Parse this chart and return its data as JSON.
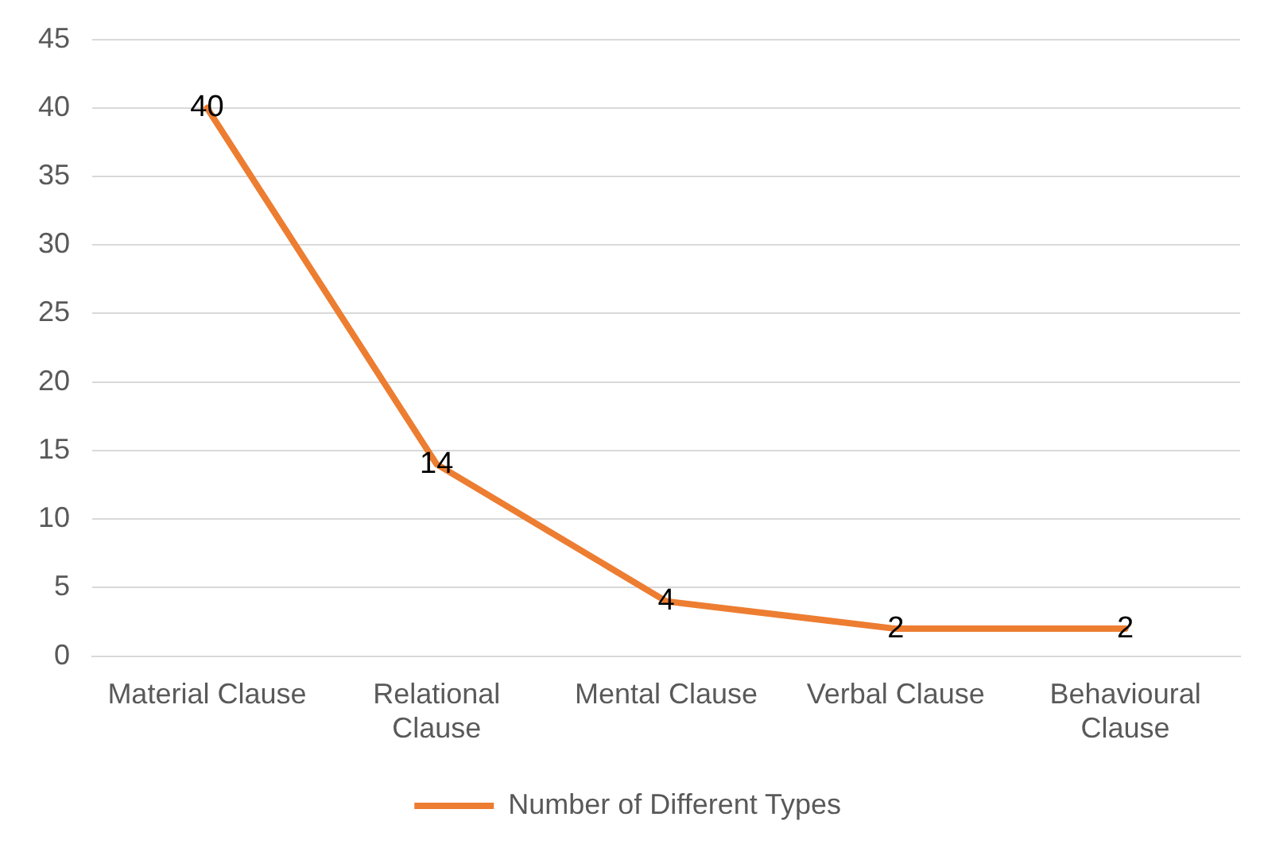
{
  "chart_data": {
    "type": "line",
    "categories": [
      "Material Clause",
      "Relational Clause",
      "Mental Clause",
      "Verbal Clause",
      "Behavioural Clause"
    ],
    "series": [
      {
        "name": "Number of Different Types",
        "color": "#ed7d31",
        "values": [
          40,
          14,
          4,
          2,
          2
        ]
      }
    ],
    "ylim": [
      0,
      45
    ],
    "yticks": [
      0,
      5,
      10,
      15,
      20,
      25,
      30,
      35,
      40,
      45
    ],
    "grid": "y",
    "legend": "bottom",
    "data_labels": true,
    "marker": "none",
    "line_style": "solid"
  }
}
